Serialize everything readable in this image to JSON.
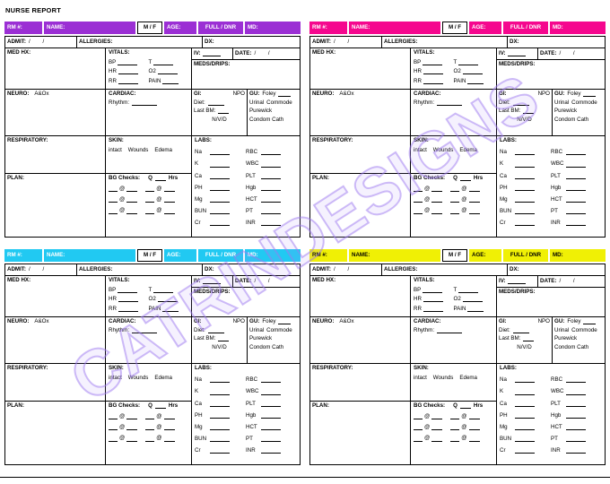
{
  "page": {
    "title": "NURSE REPORT",
    "watermark": "CATRINDESIGNS"
  },
  "labels": {
    "rm": "RM #:",
    "name": "NAME:",
    "mf": "M / F",
    "age": "AGE:",
    "code": "FULL / DNR",
    "md": "MD:",
    "admit": "ADMIT:",
    "slashes": "/        /",
    "allergies": "ALLERGIES:",
    "dx": "DX:",
    "med_hx": "MED HX:",
    "vitals": "VITALS:",
    "bp": "BP",
    "t": "T",
    "hr": "HR",
    "o2": "O2",
    "rr": "RR",
    "pain": "PAIN",
    "iv": "IV:",
    "date": "DATE:",
    "meds_drips": "MEDS/DRIPS:",
    "neuro": "NEURO:",
    "aox": "A&Ox",
    "cardiac": "CARDIAC:",
    "rhythm": "Rhythm:",
    "gi": "GI:",
    "npo": "NPO",
    "diet": "Diet:",
    "last_bm": "Last BM:",
    "nvd": "N/V/D",
    "gu": "GU:",
    "foley": "Foley",
    "urinal": "Urinal",
    "commode": "Commode",
    "purewick": "Purewick",
    "condom_cath": "Condom Cath",
    "respiratory": "RESPIRATORY:",
    "skin": "SKIN:",
    "intact": "intact",
    "wounds": "Wounds",
    "edema": "Edema",
    "labs": "LABS:",
    "na": "Na",
    "k": "K",
    "ca": "Ca",
    "rbc": "RBC",
    "wbc": "WBC",
    "plt": "PLT",
    "plan": "PLAN:",
    "bg_checks": "BG Checks:",
    "q": "Q",
    "hrs": "Hrs",
    "at": "@",
    "ph": "PH",
    "mg": "Mg",
    "bun": "BUN",
    "cr": "Cr",
    "hgb": "Hgb",
    "hct": "HCT",
    "pt": "PT",
    "inr": "INR"
  },
  "cards": [
    {
      "id": "purple",
      "header_color": "#9B2FD4",
      "header_text_color": "#FFFFFF"
    },
    {
      "id": "pink",
      "header_color": "#F5078E",
      "header_text_color": "#FFFFFF"
    },
    {
      "id": "cyan",
      "header_color": "#21C9F2",
      "header_text_color": "#FFFFFF"
    },
    {
      "id": "yellow",
      "header_color": "#F0F005",
      "header_text_color": "#000000"
    }
  ]
}
